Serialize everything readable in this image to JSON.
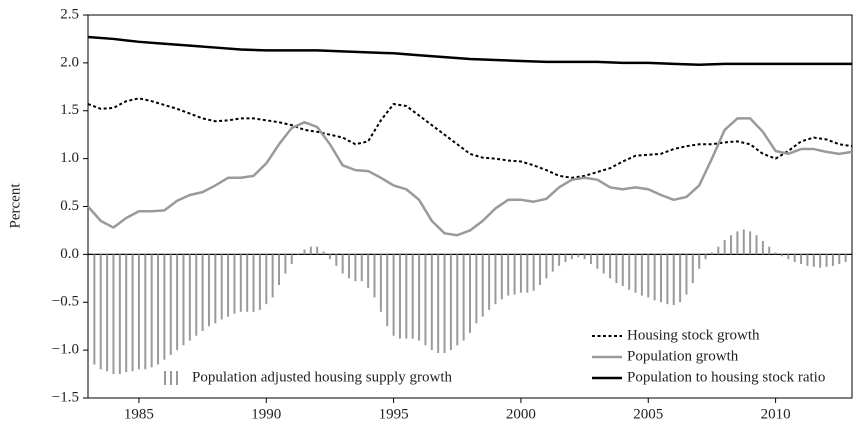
{
  "chart_data": {
    "type": "line",
    "ylabel": "Percent",
    "xlim": [
      1983,
      2013
    ],
    "xticks": [
      1985,
      1990,
      1995,
      2000,
      2005,
      2010
    ],
    "ylim": [
      -1.5,
      2.5
    ],
    "yticks": [
      {
        "value": -1.5,
        "label": "−1.5"
      },
      {
        "value": -1.0,
        "label": "−1.0"
      },
      {
        "value": -0.5,
        "label": "−0.5"
      },
      {
        "value": 0.0,
        "label": "0.0"
      },
      {
        "value": 0.5,
        "label": "0.5"
      },
      {
        "value": 1.0,
        "label": "1.0"
      },
      {
        "value": 1.5,
        "label": "1.5"
      },
      {
        "value": 2.0,
        "label": "2.0"
      },
      {
        "value": 2.5,
        "label": "2.5"
      }
    ],
    "legend": "lower right",
    "series": [
      {
        "name": "Population adjusted housing supply growth",
        "type": "bar",
        "color": "#9a9a9a",
        "x": [
          1983.25,
          1983.5,
          1983.75,
          1984,
          1984.25,
          1984.5,
          1984.75,
          1985,
          1985.25,
          1985.5,
          1985.75,
          1986,
          1986.25,
          1986.5,
          1986.75,
          1987,
          1987.25,
          1987.5,
          1987.75,
          1988,
          1988.25,
          1988.5,
          1988.75,
          1989,
          1989.25,
          1989.5,
          1989.75,
          1990,
          1990.25,
          1990.5,
          1990.75,
          1991,
          1991.25,
          1991.5,
          1991.75,
          1992,
          1992.25,
          1992.5,
          1992.75,
          1993,
          1993.25,
          1993.5,
          1993.75,
          1994,
          1994.25,
          1994.5,
          1994.75,
          1995,
          1995.25,
          1995.5,
          1995.75,
          1996,
          1996.25,
          1996.5,
          1996.75,
          1997,
          1997.25,
          1997.5,
          1997.75,
          1998,
          1998.25,
          1998.5,
          1998.75,
          1999,
          1999.25,
          1999.5,
          1999.75,
          2000,
          2000.25,
          2000.5,
          2000.75,
          2001,
          2001.25,
          2001.5,
          2001.75,
          2002,
          2002.25,
          2002.5,
          2002.75,
          2003,
          2003.25,
          2003.5,
          2003.75,
          2004,
          2004.25,
          2004.5,
          2004.75,
          2005,
          2005.25,
          2005.5,
          2005.75,
          2006,
          2006.25,
          2006.5,
          2006.75,
          2007,
          2007.25,
          2007.5,
          2007.75,
          2008,
          2008.25,
          2008.5,
          2008.75,
          2009,
          2009.25,
          2009.5,
          2009.75,
          2010,
          2010.25,
          2010.5,
          2010.75,
          2011,
          2011.25,
          2011.5,
          2011.75,
          2012,
          2012.25,
          2012.5,
          2012.75
        ],
        "values": [
          -1.15,
          -1.2,
          -1.22,
          -1.25,
          -1.25,
          -1.23,
          -1.22,
          -1.2,
          -1.2,
          -1.18,
          -1.15,
          -1.1,
          -1.05,
          -1.0,
          -0.95,
          -0.9,
          -0.85,
          -0.8,
          -0.75,
          -0.72,
          -0.68,
          -0.65,
          -0.62,
          -0.6,
          -0.6,
          -0.6,
          -0.58,
          -0.52,
          -0.45,
          -0.32,
          -0.2,
          -0.1,
          0.0,
          0.05,
          0.08,
          0.08,
          0.03,
          -0.05,
          -0.12,
          -0.2,
          -0.25,
          -0.28,
          -0.28,
          -0.35,
          -0.45,
          -0.6,
          -0.75,
          -0.85,
          -0.88,
          -0.88,
          -0.88,
          -0.9,
          -0.95,
          -1.0,
          -1.03,
          -1.03,
          -1.0,
          -0.95,
          -0.9,
          -0.82,
          -0.72,
          -0.65,
          -0.58,
          -0.52,
          -0.47,
          -0.43,
          -0.42,
          -0.4,
          -0.4,
          -0.38,
          -0.32,
          -0.25,
          -0.18,
          -0.12,
          -0.08,
          -0.05,
          -0.03,
          -0.05,
          -0.1,
          -0.15,
          -0.2,
          -0.25,
          -0.3,
          -0.33,
          -0.37,
          -0.4,
          -0.43,
          -0.45,
          -0.48,
          -0.5,
          -0.52,
          -0.53,
          -0.5,
          -0.42,
          -0.3,
          -0.15,
          -0.05,
          0.02,
          0.08,
          0.15,
          0.2,
          0.24,
          0.26,
          0.24,
          0.2,
          0.14,
          0.08,
          0.02,
          -0.02,
          -0.05,
          -0.08,
          -0.1,
          -0.12,
          -0.13,
          -0.14,
          -0.13,
          -0.12,
          -0.1,
          -0.08
        ]
      },
      {
        "name": "Housing stock growth",
        "type": "line",
        "style": "dotted",
        "color": "#000000",
        "x": [
          1983,
          1983.5,
          1984,
          1984.5,
          1985,
          1985.5,
          1986,
          1986.5,
          1987,
          1987.5,
          1988,
          1988.5,
          1989,
          1989.5,
          1990,
          1990.5,
          1991,
          1991.5,
          1992,
          1992.5,
          1993,
          1993.5,
          1994,
          1994.5,
          1995,
          1995.5,
          1996,
          1996.5,
          1997,
          1997.5,
          1998,
          1998.5,
          1999,
          1999.5,
          2000,
          2000.5,
          2001,
          2001.5,
          2002,
          2002.5,
          2003,
          2003.5,
          2004,
          2004.5,
          2005,
          2005.5,
          2006,
          2006.5,
          2007,
          2007.5,
          2008,
          2008.5,
          2009,
          2009.5,
          2010,
          2010.5,
          2011,
          2011.5,
          2012,
          2012.5,
          2013
        ],
        "values": [
          1.57,
          1.52,
          1.53,
          1.6,
          1.63,
          1.6,
          1.56,
          1.52,
          1.47,
          1.42,
          1.39,
          1.4,
          1.42,
          1.42,
          1.4,
          1.38,
          1.35,
          1.3,
          1.28,
          1.25,
          1.22,
          1.15,
          1.18,
          1.4,
          1.57,
          1.55,
          1.45,
          1.35,
          1.25,
          1.15,
          1.05,
          1.01,
          1.0,
          0.98,
          0.97,
          0.93,
          0.88,
          0.82,
          0.8,
          0.82,
          0.86,
          0.9,
          0.97,
          1.03,
          1.04,
          1.05,
          1.1,
          1.13,
          1.15,
          1.15,
          1.17,
          1.18,
          1.15,
          1.05,
          1.0,
          1.08,
          1.18,
          1.22,
          1.2,
          1.15,
          1.13
        ]
      },
      {
        "name": "Population growth",
        "type": "line",
        "style": "solid",
        "color": "#9a9a9a",
        "x": [
          1983,
          1983.5,
          1984,
          1984.5,
          1985,
          1985.5,
          1986,
          1986.5,
          1987,
          1987.5,
          1988,
          1988.5,
          1989,
          1989.5,
          1990,
          1990.5,
          1991,
          1991.5,
          1992,
          1992.5,
          1993,
          1993.5,
          1994,
          1994.5,
          1995,
          1995.5,
          1996,
          1996.5,
          1997,
          1997.5,
          1998,
          1998.5,
          1999,
          1999.5,
          2000,
          2000.5,
          2001,
          2001.5,
          2002,
          2002.5,
          2003,
          2003.5,
          2004,
          2004.5,
          2005,
          2005.5,
          2006,
          2006.5,
          2007,
          2007.5,
          2008,
          2008.5,
          2009,
          2009.5,
          2010,
          2010.5,
          2011,
          2011.5,
          2012,
          2012.5,
          2013
        ],
        "values": [
          0.5,
          0.35,
          0.28,
          0.38,
          0.45,
          0.45,
          0.46,
          0.56,
          0.62,
          0.65,
          0.72,
          0.8,
          0.8,
          0.82,
          0.95,
          1.15,
          1.32,
          1.38,
          1.33,
          1.15,
          0.93,
          0.88,
          0.87,
          0.8,
          0.72,
          0.68,
          0.57,
          0.35,
          0.22,
          0.2,
          0.25,
          0.35,
          0.48,
          0.57,
          0.57,
          0.55,
          0.58,
          0.7,
          0.78,
          0.8,
          0.78,
          0.7,
          0.68,
          0.7,
          0.68,
          0.62,
          0.57,
          0.6,
          0.72,
          1.0,
          1.3,
          1.42,
          1.42,
          1.28,
          1.08,
          1.05,
          1.1,
          1.1,
          1.07,
          1.05,
          1.07
        ]
      },
      {
        "name": "Population to housing stock ratio",
        "type": "line",
        "style": "solid",
        "color": "#000000",
        "x": [
          1983,
          1984,
          1985,
          1986,
          1987,
          1988,
          1989,
          1990,
          1991,
          1992,
          1993,
          1994,
          1995,
          1996,
          1997,
          1998,
          1999,
          2000,
          2001,
          2002,
          2003,
          2004,
          2005,
          2006,
          2007,
          2008,
          2009,
          2010,
          2011,
          2012,
          2013
        ],
        "values": [
          2.27,
          2.25,
          2.22,
          2.2,
          2.18,
          2.16,
          2.14,
          2.13,
          2.13,
          2.13,
          2.12,
          2.11,
          2.1,
          2.08,
          2.06,
          2.04,
          2.03,
          2.02,
          2.01,
          2.01,
          2.01,
          2.0,
          2.0,
          1.99,
          1.98,
          1.99,
          1.99,
          1.99,
          1.99,
          1.99,
          1.99
        ]
      }
    ]
  }
}
